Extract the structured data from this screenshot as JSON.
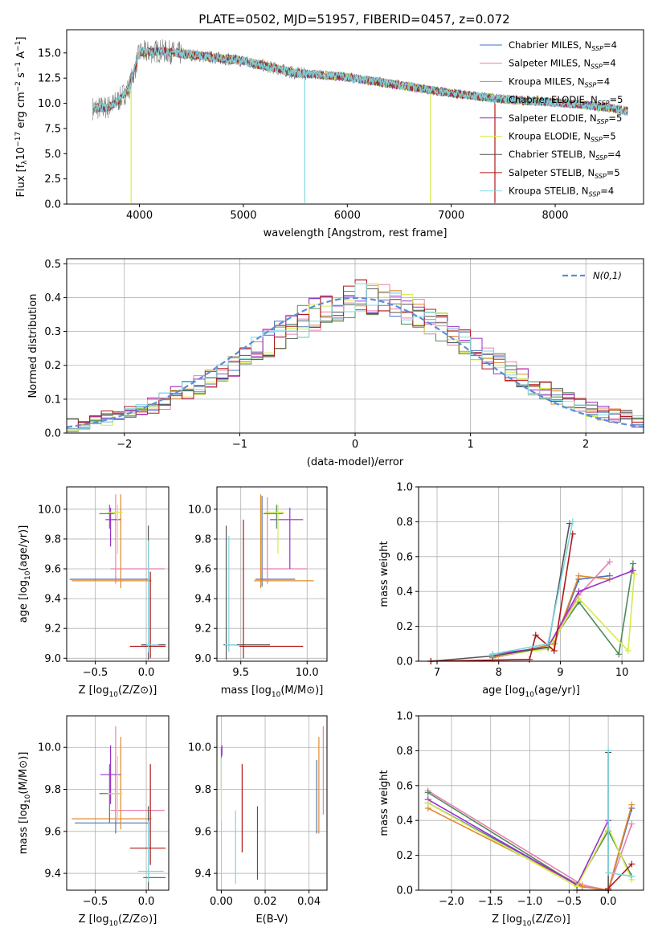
{
  "title": "PLATE=0502, MJD=51957, FIBERID=0457, z=0.072",
  "colors": {
    "chabrier_miles": "#4a72b8",
    "salpeter_miles": "#e77fb0",
    "kroupa_miles": "#e08a2e",
    "chabrier_elodie": "#4f8a5c",
    "salpeter_elodie": "#9b30c8",
    "kroupa_elodie": "#d4ec4a",
    "chabrier_stelib": "#555555",
    "salpeter_stelib": "#b01818",
    "kroupa_stelib": "#7fd6e0",
    "data": "#808080",
    "gauss": "#5b8fd6"
  },
  "chart_data": [
    {
      "type": "line",
      "name": "spectrum",
      "xlabel": "wavelength [Angstrom, rest frame]",
      "ylabel": "Flux [f_λ 10^-17 erg cm^-2 s^-1 A^-1]",
      "xlim": [
        3300,
        8850
      ],
      "ylim": [
        0,
        17.3
      ],
      "xticks": [
        "4000",
        "5000",
        "6000",
        "7000",
        "8000"
      ],
      "yticks": [
        "0.0",
        "2.5",
        "5.0",
        "7.5",
        "10.0",
        "12.5",
        "15.0"
      ],
      "continuum": [
        [
          3550,
          9.5
        ],
        [
          3700,
          9.6
        ],
        [
          3800,
          10.3
        ],
        [
          3900,
          11.5
        ],
        [
          3950,
          13.2
        ],
        [
          4000,
          15.0
        ],
        [
          4200,
          15.2
        ],
        [
          4500,
          14.8
        ],
        [
          5000,
          14.2
        ],
        [
          5500,
          13.0
        ],
        [
          6000,
          12.6
        ],
        [
          6500,
          11.8
        ],
        [
          7000,
          11.0
        ],
        [
          7500,
          10.4
        ],
        [
          8000,
          10.1
        ],
        [
          8500,
          9.6
        ],
        [
          8700,
          9.2
        ]
      ],
      "legend": [
        {
          "key": "chabrier_miles",
          "label": "Chabrier MILES, N",
          "sub": "SSP",
          "suffix": "=4"
        },
        {
          "key": "salpeter_miles",
          "label": "Salpeter MILES, N",
          "sub": "SSP",
          "suffix": "=4"
        },
        {
          "key": "kroupa_miles",
          "label": "Kroupa MILES, N",
          "sub": "SSP",
          "suffix": "=4"
        },
        {
          "key": "chabrier_elodie",
          "label": "Chabrier ELODIE, N",
          "sub": "SSP",
          "suffix": "=5"
        },
        {
          "key": "salpeter_elodie",
          "label": "Salpeter ELODIE, N",
          "sub": "SSP",
          "suffix": "=5"
        },
        {
          "key": "kroupa_elodie",
          "label": "Kroupa ELODIE, N",
          "sub": "SSP",
          "suffix": "=5"
        },
        {
          "key": "chabrier_stelib",
          "label": "Chabrier STELIB, N",
          "sub": "SSP",
          "suffix": "=4"
        },
        {
          "key": "salpeter_stelib",
          "label": "Salpeter STELIB, N",
          "sub": "SSP",
          "suffix": "=5"
        },
        {
          "key": "kroupa_stelib",
          "label": "Kroupa STELIB, N",
          "sub": "SSP",
          "suffix": "=4"
        }
      ]
    },
    {
      "type": "histogram",
      "name": "residuals",
      "xlabel": "(data-model)/error",
      "ylabel": "Normed distribution",
      "xlim": [
        -2.5,
        2.5
      ],
      "ylim": [
        0,
        0.515
      ],
      "xticks": [
        "−2",
        "−1",
        "0",
        "1",
        "2"
      ],
      "yticks": [
        "0.0",
        "0.1",
        "0.2",
        "0.3",
        "0.4",
        "0.5"
      ],
      "legend_label": "N(0,1)",
      "bin_width": 0.1,
      "x_start": -2.5,
      "base_values": [
        0.025,
        0.032,
        0.038,
        0.045,
        0.052,
        0.06,
        0.07,
        0.082,
        0.096,
        0.11,
        0.125,
        0.142,
        0.16,
        0.18,
        0.2,
        0.222,
        0.244,
        0.267,
        0.29,
        0.31,
        0.33,
        0.35,
        0.365,
        0.38,
        0.39,
        0.4,
        0.398,
        0.39,
        0.378,
        0.365,
        0.35,
        0.33,
        0.31,
        0.29,
        0.267,
        0.244,
        0.222,
        0.2,
        0.18,
        0.16,
        0.142,
        0.125,
        0.11,
        0.096,
        0.082,
        0.07,
        0.06,
        0.052,
        0.045,
        0.038
      ]
    },
    {
      "type": "errorbar",
      "name": "age-vs-Z",
      "xlabel": "Z [log10(Z/Z⊙)]",
      "ylabel": "age [log10(age/yr)]",
      "xlim": [
        -0.78,
        0.22
      ],
      "ylim": [
        8.98,
        10.15
      ],
      "xticks": [
        "−0.5",
        "0.0"
      ],
      "yticks": [
        "9.0",
        "9.2",
        "9.4",
        "9.6",
        "9.8",
        "10.0"
      ],
      "points": [
        {
          "key": "chabrier_miles",
          "x": -0.3,
          "y": 9.53,
          "xerr": [
            0.45,
            0.33
          ],
          "yerr": [
            0.02,
            0.02
          ]
        },
        {
          "key": "salpeter_miles",
          "x": -0.3,
          "y": 9.6,
          "xerr": [
            0.05,
            0.48
          ],
          "yerr": [
            0.1,
            0.5
          ]
        },
        {
          "key": "kroupa_miles",
          "x": -0.25,
          "y": 9.52,
          "xerr": [
            0.48,
            0.3
          ],
          "yerr": [
            0.05,
            0.58
          ]
        },
        {
          "key": "chabrier_elodie",
          "x": -0.36,
          "y": 9.97,
          "xerr": [
            0.1,
            0.05
          ],
          "yerr": [
            0.1,
            0.06
          ]
        },
        {
          "key": "salpeter_elodie",
          "x": -0.35,
          "y": 9.93,
          "xerr": [
            0.05,
            0.1
          ],
          "yerr": [
            0.18,
            0.08
          ]
        },
        {
          "key": "kroupa_elodie",
          "x": -0.28,
          "y": 9.98,
          "xerr": [
            0.1,
            0.05
          ],
          "yerr": [
            0.28,
            0.05
          ]
        },
        {
          "key": "chabrier_stelib",
          "x": 0.02,
          "y": 9.09,
          "xerr": [
            0.07,
            0.17
          ],
          "yerr": [
            0.1,
            0.8
          ]
        },
        {
          "key": "salpeter_stelib",
          "x": 0.04,
          "y": 9.08,
          "xerr": [
            0.2,
            0.15
          ],
          "yerr": [
            0.08,
            0.5
          ]
        },
        {
          "key": "kroupa_stelib",
          "x": 0.02,
          "y": 9.09,
          "xerr": [
            0.02,
            0.1
          ],
          "yerr": [
            0.05,
            0.7
          ]
        }
      ]
    },
    {
      "type": "errorbar",
      "name": "age-vs-mass",
      "xlabel": "mass [log10(M/M⊙)]",
      "ylabel": "",
      "xlim": [
        9.32,
        10.15
      ],
      "ylim": [
        8.98,
        10.15
      ],
      "xticks": [
        "9.5",
        "10.0"
      ],
      "yticks": [
        "9.0",
        "9.2",
        "9.4",
        "9.6",
        "9.8",
        "10.0"
      ],
      "points": [
        {
          "key": "chabrier_miles",
          "x": 9.66,
          "y": 9.53,
          "xerr": [
            0.05,
            0.25
          ],
          "yerr": [
            0.05,
            0.56
          ]
        },
        {
          "key": "salpeter_miles",
          "x": 9.7,
          "y": 9.6,
          "xerr": [
            0.05,
            0.3
          ],
          "yerr": [
            0.1,
            0.48
          ]
        },
        {
          "key": "kroupa_miles",
          "x": 9.65,
          "y": 9.52,
          "xerr": [
            0.05,
            0.4
          ],
          "yerr": [
            0.05,
            0.58
          ]
        },
        {
          "key": "chabrier_elodie",
          "x": 9.77,
          "y": 9.97,
          "xerr": [
            0.1,
            0.05
          ],
          "yerr": [
            0.1,
            0.06
          ]
        },
        {
          "key": "salpeter_elodie",
          "x": 9.87,
          "y": 9.93,
          "xerr": [
            0.15,
            0.1
          ],
          "yerr": [
            0.33,
            0.08
          ]
        },
        {
          "key": "kroupa_elodie",
          "x": 9.78,
          "y": 9.98,
          "xerr": [
            0.1,
            0.05
          ],
          "yerr": [
            0.28,
            0.05
          ]
        },
        {
          "key": "chabrier_stelib",
          "x": 9.39,
          "y": 9.09,
          "xerr": [
            0.02,
            0.33
          ],
          "yerr": [
            0.1,
            0.8
          ]
        },
        {
          "key": "salpeter_stelib",
          "x": 9.52,
          "y": 9.08,
          "xerr": [
            0.03,
            0.45
          ],
          "yerr": [
            0.08,
            0.85
          ]
        },
        {
          "key": "kroupa_stelib",
          "x": 9.41,
          "y": 9.09,
          "xerr": [
            0.03,
            0.06
          ],
          "yerr": [
            0.05,
            0.73
          ]
        }
      ]
    },
    {
      "type": "line",
      "name": "mass-weight-vs-age",
      "xlabel": "age [log10(age/yr)]",
      "ylabel": "mass weight",
      "xlim": [
        6.7,
        10.35
      ],
      "ylim": [
        0,
        1.0
      ],
      "xticks": [
        "7",
        "8",
        "9",
        "10"
      ],
      "yticks": [
        "0.0",
        "0.2",
        "0.4",
        "0.6",
        "0.8",
        "1.0"
      ],
      "series": [
        {
          "key": "chabrier_miles",
          "x": [
            7.9,
            8.9,
            9.3,
            9.8
          ],
          "y": [
            0.02,
            0.1,
            0.47,
            0.49
          ]
        },
        {
          "key": "salpeter_miles",
          "x": [
            7.9,
            8.8,
            9.3,
            9.8
          ],
          "y": [
            0.02,
            0.08,
            0.38,
            0.57
          ]
        },
        {
          "key": "kroupa_miles",
          "x": [
            7.9,
            8.9,
            9.3,
            9.8
          ],
          "y": [
            0.02,
            0.1,
            0.49,
            0.47
          ]
        },
        {
          "key": "chabrier_elodie",
          "x": [
            7.9,
            8.8,
            9.3,
            9.95,
            10.18
          ],
          "y": [
            0.03,
            0.08,
            0.34,
            0.04,
            0.56
          ]
        },
        {
          "key": "salpeter_elodie",
          "x": [
            7.9,
            8.8,
            9.3,
            10.18
          ],
          "y": [
            0.04,
            0.08,
            0.4,
            0.52
          ]
        },
        {
          "key": "kroupa_elodie",
          "x": [
            7.9,
            8.8,
            9.3,
            10.1,
            10.2
          ],
          "y": [
            0.03,
            0.07,
            0.36,
            0.06,
            0.5
          ]
        },
        {
          "key": "chabrier_stelib",
          "x": [
            6.9,
            7.9,
            8.8,
            9.15
          ],
          "y": [
            0.0,
            0.03,
            0.08,
            0.79
          ]
        },
        {
          "key": "salpeter_stelib",
          "x": [
            6.9,
            8.5,
            8.6,
            8.9,
            9.2
          ],
          "y": [
            0.0,
            0.01,
            0.15,
            0.06,
            0.73
          ]
        },
        {
          "key": "kroupa_stelib",
          "x": [
            7.9,
            8.8,
            9.2
          ],
          "y": [
            0.04,
            0.1,
            0.8
          ]
        }
      ]
    },
    {
      "type": "errorbar",
      "name": "mass-vs-Z",
      "xlabel": "Z [log10(Z/Z⊙)]",
      "ylabel": "mass [log10(M/M⊙)]",
      "xlim": [
        -0.78,
        0.22
      ],
      "ylim": [
        9.32,
        10.15
      ],
      "xticks": [
        "−0.5",
        "0.0"
      ],
      "yticks": [
        "9.4",
        "9.6",
        "9.8",
        "10.0"
      ],
      "points": [
        {
          "key": "chabrier_miles",
          "x": -0.3,
          "y": 9.64,
          "xerr": [
            0.4,
            0.33
          ],
          "yerr": [
            0.05,
            0.3
          ]
        },
        {
          "key": "salpeter_miles",
          "x": -0.3,
          "y": 9.7,
          "xerr": [
            0.05,
            0.48
          ],
          "yerr": [
            0.05,
            0.4
          ]
        },
        {
          "key": "kroupa_miles",
          "x": -0.25,
          "y": 9.66,
          "xerr": [
            0.48,
            0.3
          ],
          "yerr": [
            0.05,
            0.39
          ]
        },
        {
          "key": "chabrier_elodie",
          "x": -0.36,
          "y": 9.78,
          "xerr": [
            0.1,
            0.1
          ],
          "yerr": [
            0.14,
            0.14
          ]
        },
        {
          "key": "salpeter_elodie",
          "x": -0.35,
          "y": 9.87,
          "xerr": [
            0.1,
            0.1
          ],
          "yerr": [
            0.14,
            0.14
          ]
        },
        {
          "key": "kroupa_elodie",
          "x": -0.28,
          "y": 9.78,
          "xerr": [
            0.1,
            0.05
          ],
          "yerr": [
            0.13,
            0.18
          ]
        },
        {
          "key": "chabrier_stelib",
          "x": 0.02,
          "y": 9.38,
          "xerr": [
            0.05,
            0.17
          ],
          "yerr": [
            0.1,
            0.34
          ]
        },
        {
          "key": "salpeter_stelib",
          "x": 0.04,
          "y": 9.52,
          "xerr": [
            0.2,
            0.15
          ],
          "yerr": [
            0.08,
            0.4
          ]
        },
        {
          "key": "kroupa_stelib",
          "x": 0.02,
          "y": 9.41,
          "xerr": [
            0.1,
            0.15
          ],
          "yerr": [
            0.05,
            0.24
          ]
        }
      ]
    },
    {
      "type": "errorbar",
      "name": "mass-vs-ebv",
      "xlabel": "E(B-V)",
      "ylabel": "",
      "xlim": [
        -0.002,
        0.0482
      ],
      "ylim": [
        9.32,
        10.15
      ],
      "xticks": [
        "0.00",
        "0.02",
        "0.04"
      ],
      "yticks": [
        "9.4",
        "9.6",
        "9.8",
        "10.0"
      ],
      "points": [
        {
          "key": "chabrier_miles",
          "x": 0.0435,
          "y": 9.64,
          "xerr": [
            0,
            0
          ],
          "yerr": [
            0.05,
            0.3
          ]
        },
        {
          "key": "salpeter_miles",
          "x": 0.0465,
          "y": 9.88,
          "xerr": [
            0,
            0
          ],
          "yerr": [
            0.2,
            0.22
          ]
        },
        {
          "key": "kroupa_miles",
          "x": 0.0445,
          "y": 9.82,
          "xerr": [
            0,
            0
          ],
          "yerr": [
            0.23,
            0.23
          ]
        },
        {
          "key": "chabrier_elodie",
          "x": 0.0,
          "y": 9.9,
          "xerr": [
            0,
            0
          ],
          "yerr": [
            0.1,
            0.1
          ]
        },
        {
          "key": "salpeter_elodie",
          "x": 0.0003,
          "y": 9.98,
          "xerr": [
            0,
            0
          ],
          "yerr": [
            0.02,
            0.03
          ]
        },
        {
          "key": "kroupa_elodie",
          "x": 0.0,
          "y": 9.8,
          "xerr": [
            0,
            0
          ],
          "yerr": [
            0.15,
            0.15
          ]
        },
        {
          "key": "chabrier_stelib",
          "x": 0.0165,
          "y": 9.53,
          "xerr": [
            0,
            0
          ],
          "yerr": [
            0.16,
            0.19
          ]
        },
        {
          "key": "salpeter_stelib",
          "x": 0.0095,
          "y": 9.71,
          "xerr": [
            0,
            0
          ],
          "yerr": [
            0.21,
            0.21
          ]
        },
        {
          "key": "kroupa_stelib",
          "x": 0.0065,
          "y": 9.5,
          "xerr": [
            0,
            0
          ],
          "yerr": [
            0.15,
            0.2
          ]
        }
      ]
    },
    {
      "type": "line",
      "name": "mass-weight-vs-Z",
      "xlabel": "Z [log10(Z/Z⊙)]",
      "ylabel": "mass weight",
      "xlim": [
        -2.42,
        0.45
      ],
      "ylim": [
        0,
        1.0
      ],
      "xticks": [
        "−2.0",
        "−1.5",
        "−1.0",
        "−0.5",
        "0.0"
      ],
      "yticks": [
        "0.0",
        "0.2",
        "0.4",
        "0.6",
        "0.8",
        "1.0"
      ],
      "series": [
        {
          "key": "chabrier_miles",
          "x": [
            -2.3,
            -0.33,
            0.0,
            0.3
          ],
          "y": [
            0.5,
            0.02,
            0.0,
            0.47
          ]
        },
        {
          "key": "salpeter_miles",
          "x": [
            -2.3,
            -0.33,
            0.0,
            0.3
          ],
          "y": [
            0.57,
            0.03,
            0.0,
            0.38
          ]
        },
        {
          "key": "kroupa_miles",
          "x": [
            -2.3,
            -0.33,
            0.0,
            0.3
          ],
          "y": [
            0.47,
            0.02,
            0.0,
            0.49
          ]
        },
        {
          "key": "chabrier_elodie",
          "x": [
            -2.3,
            -0.4,
            0.0,
            0.3
          ],
          "y": [
            0.56,
            0.03,
            0.34,
            0.08
          ]
        },
        {
          "key": "salpeter_elodie",
          "x": [
            -2.3,
            -0.4,
            0.0
          ],
          "y": [
            0.52,
            0.03,
            0.4
          ]
        },
        {
          "key": "kroupa_elodie",
          "x": [
            -2.3,
            -0.4,
            0.0,
            0.3
          ],
          "y": [
            0.5,
            0.02,
            0.36,
            0.06
          ]
        },
        {
          "key": "chabrier_stelib",
          "x": [
            -0.4,
            0.0,
            0.0
          ],
          "y": [
            0.0,
            0.0,
            0.79
          ]
        },
        {
          "key": "salpeter_stelib",
          "x": [
            0.0,
            0.3
          ],
          "y": [
            0.01,
            0.15
          ]
        },
        {
          "key": "kroupa_stelib",
          "x": [
            0.0,
            0.0,
            0.3
          ],
          "y": [
            0.8,
            0.1,
            0.08
          ]
        }
      ]
    }
  ]
}
